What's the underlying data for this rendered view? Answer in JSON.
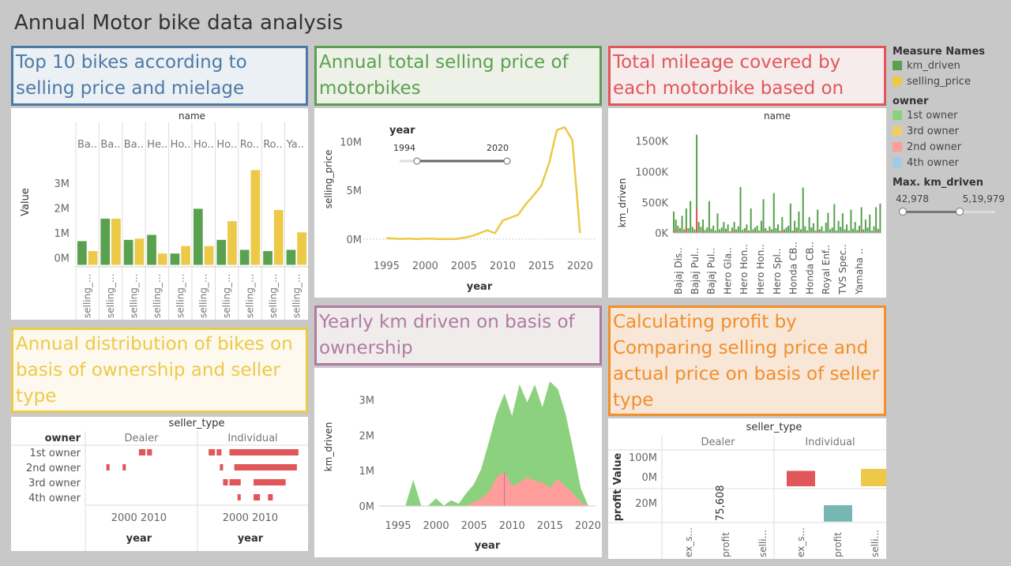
{
  "dashboard_title": "Annual Motor bike data analysis",
  "colors": {
    "green": "#59a14f",
    "yellow": "#edc948",
    "red": "#e15759",
    "teal": "#76b7b2",
    "lightgreen": "#8cd17d",
    "lightyellow": "#f1ce63",
    "pink": "#ff9d9a",
    "lightblue": "#a0cbe8"
  },
  "headers": {
    "top10": "Top 10 bikes according to selling price and mielage",
    "annual_price": "Annual total selling price of motorbikes",
    "mileage": "Total mileage covered by each motorbike based on ownership",
    "distribution": "Annual distribution of bikes on basis of ownership and seller type",
    "yearly_km": "Yearly km driven on basis of ownership",
    "profit": "Calculating profit by Comparing  selling price and actual price on basis of seller type"
  },
  "legend": {
    "measure_title": "Measure Names",
    "measures": [
      {
        "label": "km_driven",
        "color": "#59a14f"
      },
      {
        "label": "selling_price",
        "color": "#edc948"
      }
    ],
    "owner_title": "owner",
    "owners": [
      {
        "label": "1st owner",
        "color": "#8cd17d"
      },
      {
        "label": "3rd owner",
        "color": "#f1ce63"
      },
      {
        "label": "2nd owner",
        "color": "#ff9d9a"
      },
      {
        "label": "4th owner",
        "color": "#a0cbe8"
      }
    ],
    "slider_title": "Max. km_driven",
    "slider_min": "42,978",
    "slider_max": "5,19,979"
  },
  "chart_data": [
    {
      "id": "top10",
      "type": "bar",
      "column_header": "name",
      "ylabel": "Value",
      "yticks": [
        "0M",
        "1M",
        "2M",
        "3M"
      ],
      "ylim": [
        -0.3,
        4.2
      ],
      "categories": [
        "Ba..",
        "Ba..",
        "Ba..",
        "He..",
        "Ho..",
        "Ho..",
        "Ho..",
        "Ro..",
        "Ro..",
        "Ya.."
      ],
      "series": [
        {
          "name": "km_driven",
          "values": [
            0.7,
            1.6,
            0.75,
            0.95,
            0.2,
            2.0,
            0.75,
            0.35,
            0.3,
            0.35
          ]
        },
        {
          "name": "selling_price",
          "values": [
            0.3,
            1.6,
            0.8,
            0.2,
            0.5,
            0.5,
            1.5,
            3.55,
            1.95,
            1.05
          ]
        }
      ],
      "sub_labels": [
        "selling_...",
        "selling_...",
        "selling_...",
        "selling_...",
        "selling_...",
        "selling_...",
        "selling_...",
        "selling_...",
        "selling_...",
        "selling_..."
      ]
    },
    {
      "id": "annual_price",
      "type": "line",
      "xlabel": "year",
      "ylabel": "selling_price",
      "xticks": [
        1995,
        2000,
        2005,
        2010,
        2015,
        2020
      ],
      "yticks": [
        "0M",
        "5M",
        "10M"
      ],
      "xlim": [
        1992,
        2022
      ],
      "ylim": [
        -0.5,
        12
      ],
      "filter_label": "year",
      "filter_min": "1994",
      "filter_max": "2020",
      "x": [
        1995,
        1996,
        1997,
        1998,
        1999,
        2000,
        2001,
        2002,
        2003,
        2004,
        2005,
        2006,
        2007,
        2008,
        2009,
        2010,
        2011,
        2012,
        2013,
        2014,
        2015,
        2016,
        2017,
        2018,
        2019,
        2020
      ],
      "y": [
        0.1,
        0.05,
        0.02,
        0.05,
        0.0,
        0.05,
        0.03,
        0.0,
        0.02,
        0.0,
        0.15,
        0.3,
        0.6,
        0.9,
        0.6,
        1.9,
        2.2,
        2.5,
        3.6,
        4.5,
        5.5,
        7.8,
        11.2,
        11.5,
        10.2,
        0.6
      ]
    },
    {
      "id": "mileage",
      "type": "bar",
      "column_header": "name",
      "ylabel": "km_driven",
      "yticks": [
        "0K",
        "500K",
        "1000K",
        "1500K"
      ],
      "ylim": [
        -100,
        1750
      ],
      "xlabels": [
        "Bajaj Dis..",
        "Bajaj Pul..",
        "Bajaj Pul..",
        "Hero Gla..",
        "Hero Hon..",
        "Hero Hon..",
        "Hero Spl..",
        "Honda CB..",
        "Honda CB..",
        "Royal Enf..",
        "TVS Spec..",
        "Yamaha .."
      ],
      "values_1st": [
        350,
        220,
        120,
        80,
        280,
        60,
        400,
        80,
        520,
        100,
        60,
        1600,
        180,
        100,
        220,
        50,
        90,
        520,
        70,
        120,
        40,
        320,
        60,
        90,
        180,
        70,
        140,
        30,
        90,
        180,
        60,
        110,
        750,
        50,
        80,
        140,
        40,
        400,
        60,
        90,
        120,
        40,
        200,
        550,
        80,
        40,
        110,
        60,
        650,
        80,
        140,
        40,
        260,
        60,
        90,
        120,
        480,
        40,
        200,
        90,
        350,
        60,
        740,
        110,
        40,
        260,
        90,
        160,
        40,
        380,
        60,
        110,
        30,
        170,
        330,
        60,
        90,
        470,
        40,
        200,
        100,
        320,
        60,
        140,
        40,
        380,
        70,
        180,
        50,
        120,
        420,
        60,
        220,
        90,
        300,
        40,
        110,
        420,
        70,
        480
      ],
      "values_2nd": [
        0,
        60,
        0,
        20,
        0,
        0,
        90,
        0,
        0,
        0,
        0,
        380,
        0,
        0,
        40,
        0,
        0,
        0,
        0,
        20,
        0,
        0,
        0,
        0,
        30,
        0,
        0,
        0,
        0,
        40,
        0,
        0,
        0,
        0,
        0,
        40,
        0,
        0,
        0,
        0,
        20,
        0,
        0,
        0,
        0,
        0,
        30,
        0,
        0,
        0,
        0,
        0,
        40,
        0,
        0,
        0,
        0,
        0,
        30,
        0,
        0,
        0,
        0,
        20,
        0,
        0,
        0,
        0,
        0,
        40,
        0,
        0,
        0,
        0,
        0,
        0,
        0,
        20,
        0,
        0,
        0,
        0,
        0,
        30,
        0,
        0,
        0,
        0,
        0,
        0,
        40,
        0,
        0,
        0,
        0,
        0,
        0,
        0,
        30,
        0
      ]
    },
    {
      "id": "distribution",
      "type": "heatmap",
      "column_header": "seller_type",
      "row_header": "owner",
      "columns": [
        "Dealer",
        "Individual"
      ],
      "rows": [
        "1st owner",
        "2nd owner",
        "3rd owner",
        "4th owner"
      ],
      "xticks": [
        "2000 2010",
        "2000 2010"
      ],
      "xlabel": "year",
      "xlim": [
        1990,
        2022
      ],
      "ticks_at": [
        2000,
        2010
      ],
      "marks": [
        {
          "row": 0,
          "col": 0,
          "from": 2005,
          "to": 2007
        },
        {
          "row": 0,
          "col": 0,
          "from": 2007.5,
          "to": 2009
        },
        {
          "row": 0,
          "col": 1,
          "from": 1992,
          "to": 1994
        },
        {
          "row": 0,
          "col": 1,
          "from": 1994.5,
          "to": 1996
        },
        {
          "row": 0,
          "col": 1,
          "from": 1998.5,
          "to": 2020
        },
        {
          "row": 1,
          "col": 0,
          "from": 1995,
          "to": 1996
        },
        {
          "row": 1,
          "col": 0,
          "from": 2000,
          "to": 2001
        },
        {
          "row": 1,
          "col": 1,
          "from": 1995.5,
          "to": 1996.5
        },
        {
          "row": 1,
          "col": 1,
          "from": 2000,
          "to": 2019.5
        },
        {
          "row": 2,
          "col": 1,
          "from": 1996.5,
          "to": 1998
        },
        {
          "row": 2,
          "col": 1,
          "from": 1998.5,
          "to": 2002
        },
        {
          "row": 2,
          "col": 1,
          "from": 2006,
          "to": 2016
        },
        {
          "row": 3,
          "col": 1,
          "from": 2001,
          "to": 2002
        },
        {
          "row": 3,
          "col": 1,
          "from": 2006,
          "to": 2008
        },
        {
          "row": 3,
          "col": 1,
          "from": 2010.5,
          "to": 2012
        }
      ]
    },
    {
      "id": "yearly_km",
      "type": "area",
      "xlabel": "year",
      "ylabel": "km_driven",
      "xticks": [
        1995,
        2000,
        2005,
        2010,
        2015,
        2020
      ],
      "yticks": [
        "0M",
        "1M",
        "2M",
        "3M"
      ],
      "xlim": [
        1992.5,
        2021
      ],
      "ylim": [
        -0.2,
        3.5
      ],
      "x": [
        1995,
        1996,
        1997,
        1998,
        1999,
        2000,
        2001,
        2002,
        2003,
        2004,
        2005,
        2006,
        2007,
        2008,
        2009,
        2010,
        2011,
        2012,
        2013,
        2014,
        2015,
        2016,
        2017,
        2018,
        2019,
        2020
      ],
      "total": [
        0,
        0,
        0.7,
        0,
        0,
        0.2,
        0.0,
        0.15,
        0.05,
        0.35,
        0.6,
        1.05,
        1.8,
        2.6,
        3.15,
        2.5,
        3.4,
        2.9,
        3.4,
        2.75,
        3.5,
        3.3,
        2.6,
        1.6,
        0.5,
        0
      ],
      "owner_2nd": [
        0,
        0,
        0,
        0,
        0,
        0,
        0,
        0,
        0,
        0,
        0.1,
        0.2,
        0.4,
        0.8,
        0.95,
        0.55,
        0.65,
        0.8,
        0.7,
        0.65,
        0.5,
        0.75,
        0.55,
        0.35,
        0.1,
        0
      ]
    },
    {
      "id": "profit",
      "type": "bar",
      "column_header": "seller_type",
      "columns": [
        "Dealer",
        "Individual"
      ],
      "row_labels": [
        "Value",
        "profit"
      ],
      "value_ticks": [
        "100M",
        "0M"
      ],
      "profit_ticks": [
        "20M"
      ],
      "sub_labels": [
        "ex_s...",
        "profit",
        "selli...",
        "ex_s...",
        "profit",
        "selli..."
      ],
      "annotation": "75,608",
      "value_bars": [
        {
          "col": 1,
          "slot": 0,
          "value": 0.8,
          "color": "#e15759"
        },
        {
          "col": 1,
          "slot": 2,
          "value": 0.9,
          "color": "#edc948"
        }
      ],
      "profit_bars": [
        {
          "col": 1,
          "slot": 1,
          "value": 0.85,
          "color": "#76b7b2"
        }
      ]
    }
  ]
}
